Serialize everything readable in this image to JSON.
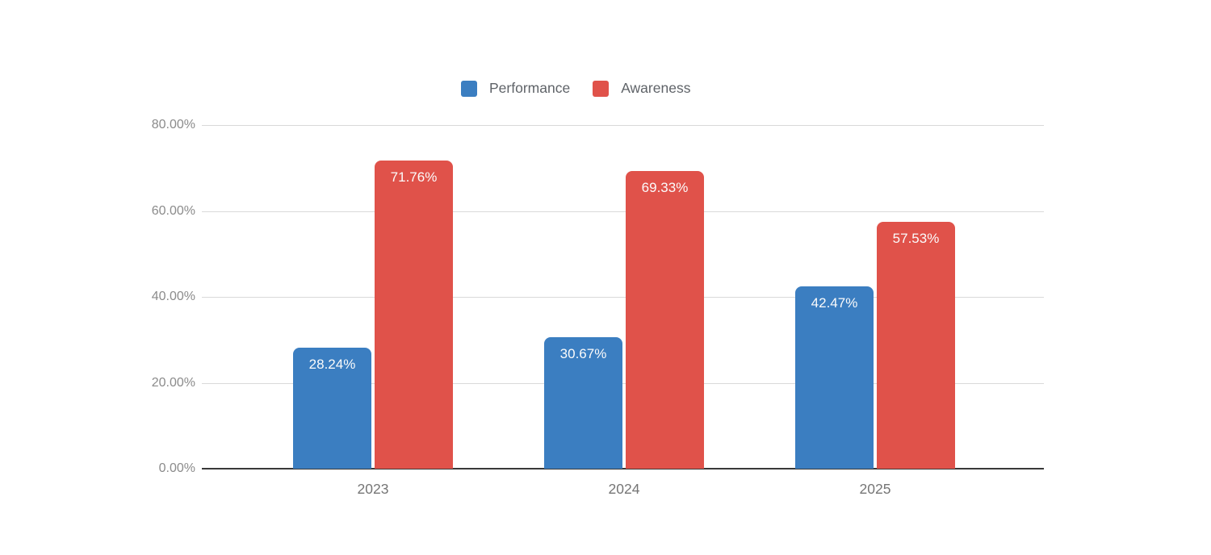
{
  "chart_data": {
    "type": "bar",
    "title": "",
    "categories": [
      "2023",
      "2024",
      "2025"
    ],
    "series": [
      {
        "name": "Performance",
        "color": "#3b7ec1",
        "values": [
          28.24,
          30.67,
          42.47
        ],
        "data_labels": [
          "28.24%",
          "30.67%",
          "42.47%"
        ]
      },
      {
        "name": "Awareness",
        "color": "#e0524a",
        "values": [
          71.76,
          69.33,
          57.53
        ],
        "data_labels": [
          "71.76%",
          "69.33%",
          "57.53%"
        ]
      }
    ],
    "y_axis": {
      "ticks": [
        "0.00%",
        "20.00%",
        "40.00%",
        "60.00%",
        "80.00%"
      ],
      "tick_values": [
        0,
        20,
        40,
        60,
        80
      ],
      "min": 0,
      "max": 80
    },
    "grid": true,
    "legend_position": "top",
    "baseline_color": "#383838",
    "gridline_color": "#d9d9d9"
  }
}
